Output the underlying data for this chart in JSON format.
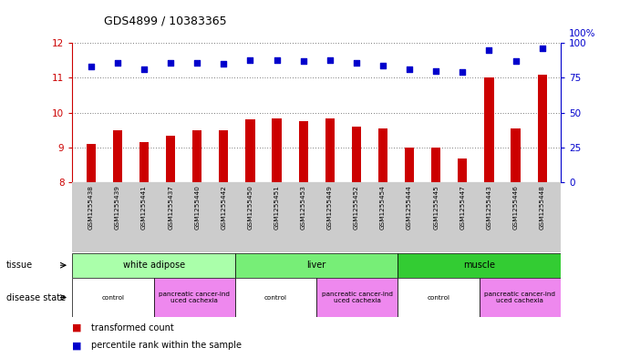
{
  "title": "GDS4899 / 10383365",
  "samples": [
    "GSM1255438",
    "GSM1255439",
    "GSM1255441",
    "GSM1255437",
    "GSM1255440",
    "GSM1255442",
    "GSM1255450",
    "GSM1255451",
    "GSM1255453",
    "GSM1255449",
    "GSM1255452",
    "GSM1255454",
    "GSM1255444",
    "GSM1255445",
    "GSM1255447",
    "GSM1255443",
    "GSM1255446",
    "GSM1255448"
  ],
  "transformed_count": [
    9.1,
    9.5,
    9.15,
    9.35,
    9.5,
    9.5,
    9.8,
    9.85,
    9.75,
    9.85,
    9.6,
    9.55,
    9.0,
    9.0,
    8.7,
    11.0,
    9.55,
    11.1
  ],
  "percentile_rank": [
    83,
    86,
    81,
    86,
    86,
    85,
    88,
    88,
    87,
    88,
    86,
    84,
    81,
    80,
    79,
    95,
    87,
    96
  ],
  "ylim_left": [
    8,
    12
  ],
  "ylim_right": [
    0,
    100
  ],
  "yticks_left": [
    8,
    9,
    10,
    11,
    12
  ],
  "yticks_right": [
    0,
    25,
    50,
    75,
    100
  ],
  "bar_color": "#cc0000",
  "dot_color": "#0000cc",
  "tissue_groups": [
    {
      "label": "white adipose",
      "start": 0,
      "end": 6,
      "color": "#aaffaa"
    },
    {
      "label": "liver",
      "start": 6,
      "end": 12,
      "color": "#77ee77"
    },
    {
      "label": "muscle",
      "start": 12,
      "end": 18,
      "color": "#33cc33"
    }
  ],
  "disease_groups": [
    {
      "label": "control",
      "start": 0,
      "end": 3,
      "color": "#ffffff"
    },
    {
      "label": "pancreatic cancer-ind\nuced cachexia",
      "start": 3,
      "end": 6,
      "color": "#ee88ee"
    },
    {
      "label": "control",
      "start": 6,
      "end": 9,
      "color": "#ffffff"
    },
    {
      "label": "pancreatic cancer-ind\nuced cachexia",
      "start": 9,
      "end": 12,
      "color": "#ee88ee"
    },
    {
      "label": "control",
      "start": 12,
      "end": 15,
      "color": "#ffffff"
    },
    {
      "label": "pancreatic cancer-ind\nuced cachexia",
      "start": 15,
      "end": 18,
      "color": "#ee88ee"
    }
  ],
  "legend_items": [
    {
      "label": "transformed count",
      "color": "#cc0000"
    },
    {
      "label": "percentile rank within the sample",
      "color": "#0000cc"
    }
  ],
  "bg_color": "#ffffff",
  "grid_color": "#000000",
  "right_axis_color": "#0000cc",
  "left_axis_color": "#cc0000",
  "label_bg_color": "#cccccc"
}
